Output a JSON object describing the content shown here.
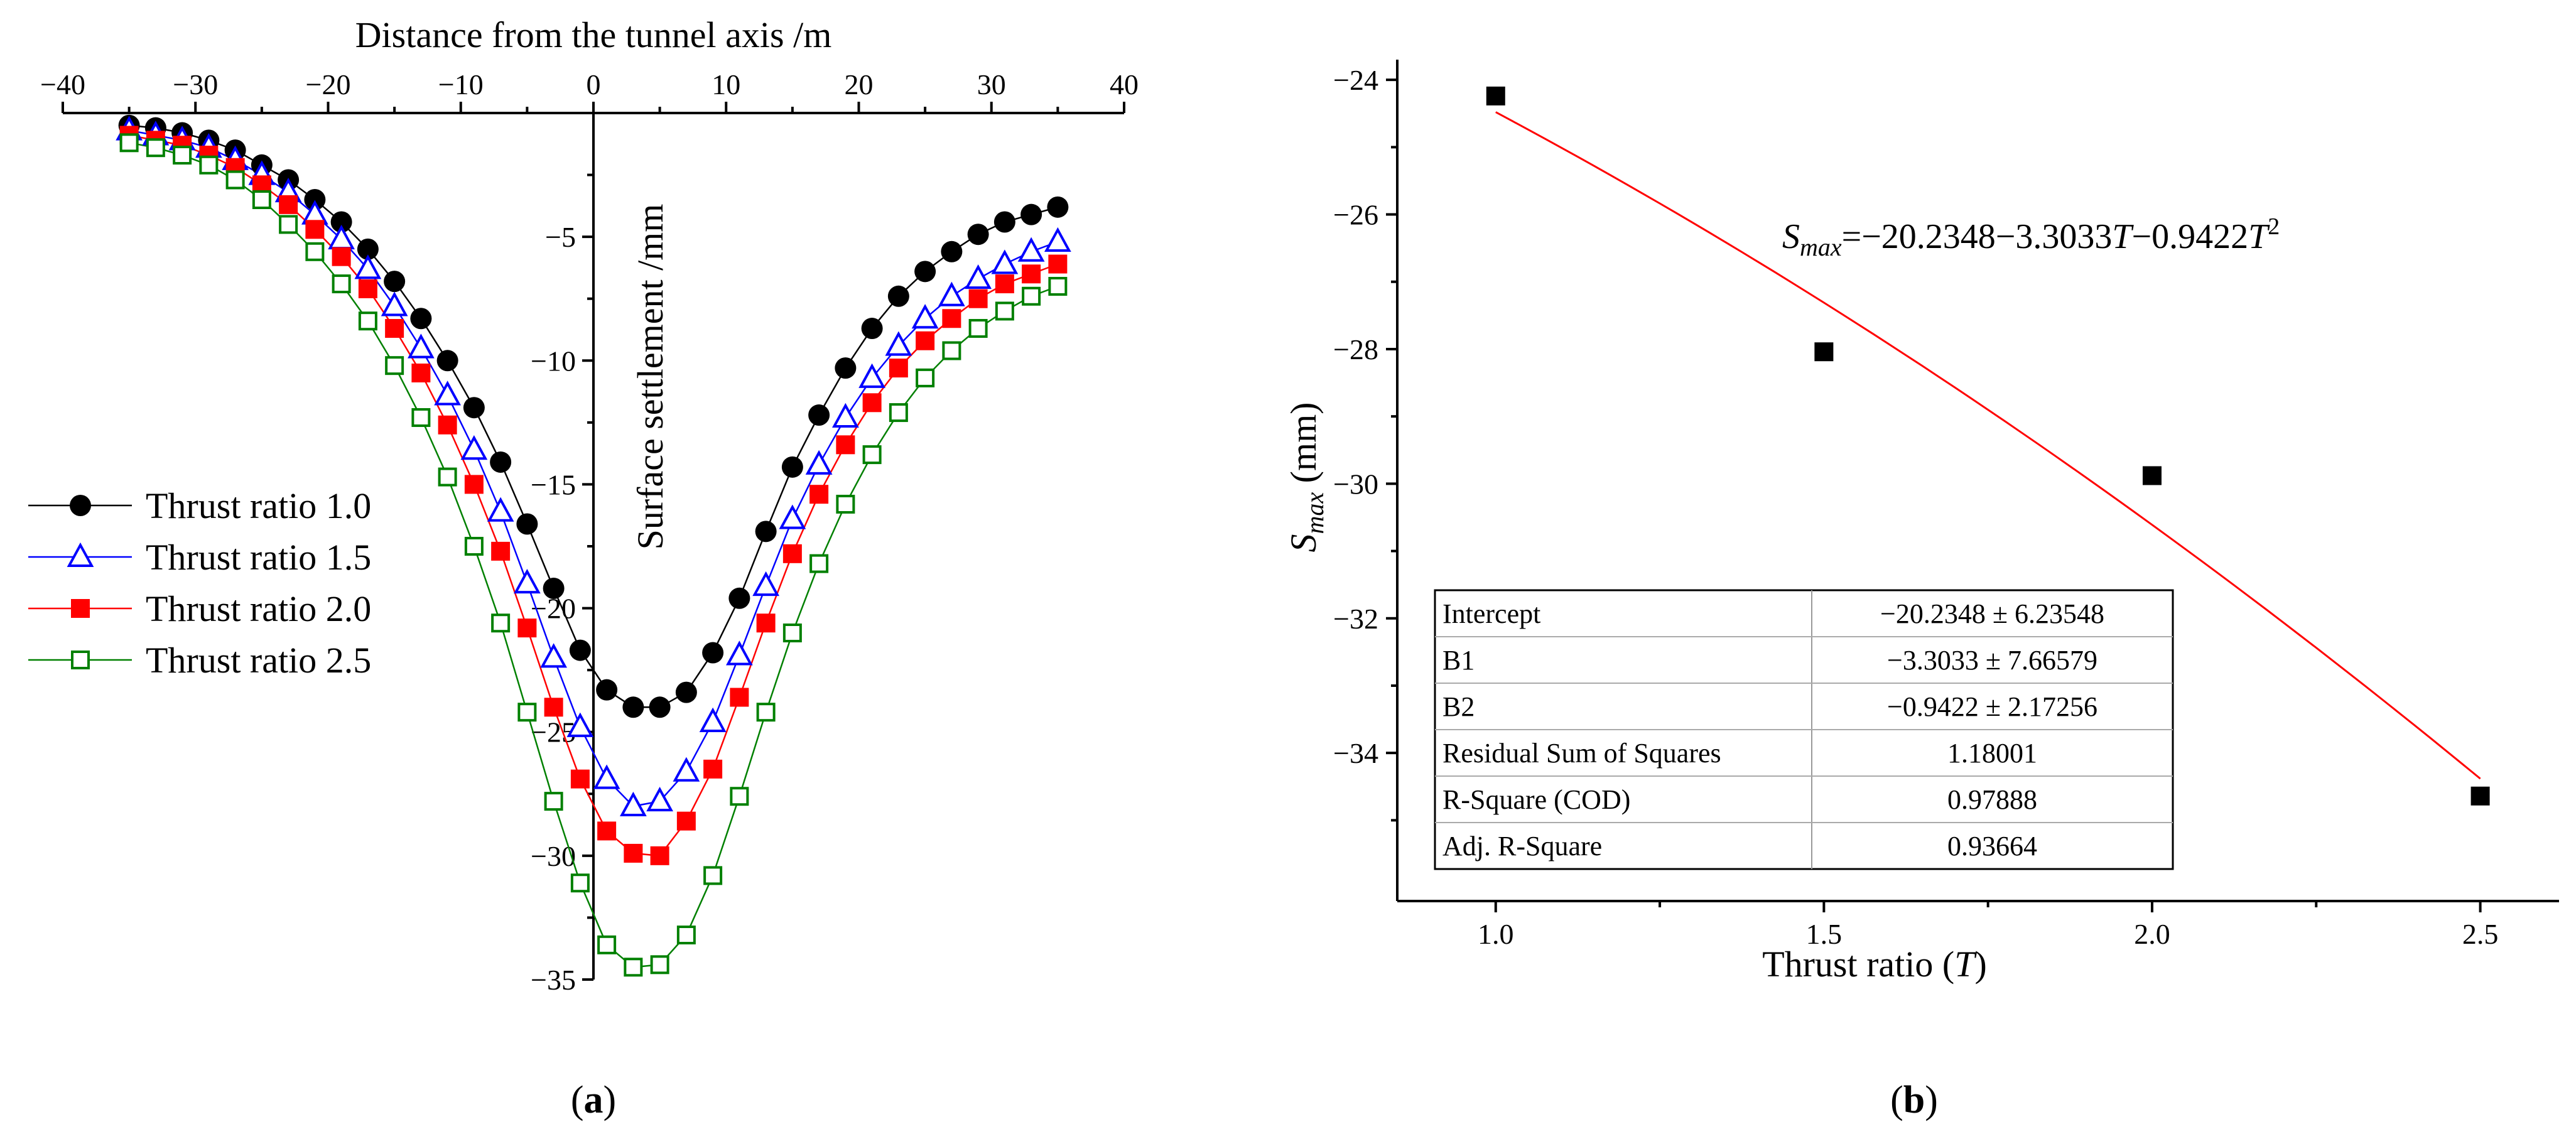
{
  "chart_data": [
    {
      "type": "line",
      "panel_label": "a",
      "title": "",
      "xlabel": "Distance from the tunnel axis /m",
      "ylabel": "Surface settlement /mm",
      "xlim": [
        -40,
        40
      ],
      "ylim": [
        -35,
        0
      ],
      "xticks": [
        -40,
        -30,
        -20,
        -10,
        0,
        10,
        20,
        30,
        40
      ],
      "yticks": [
        -5,
        -10,
        -15,
        -20,
        -25,
        -30,
        -35
      ],
      "x": [
        -35,
        -33,
        -31,
        -29,
        -27,
        -25,
        -23,
        -21,
        -19,
        -17,
        -15,
        -13,
        -11,
        -9,
        -7,
        -5,
        -3,
        -1,
        1,
        3,
        5,
        7,
        9,
        11,
        13,
        15,
        17,
        19,
        21,
        23,
        25,
        27,
        29,
        31,
        33,
        35
      ],
      "legend_position": "left",
      "series": [
        {
          "name": "Thrust ratio 1.0",
          "marker": "filled-circle",
          "color": "#000000",
          "values": [
            -0.5,
            -0.6,
            -0.8,
            -1.1,
            -1.5,
            -2.1,
            -2.7,
            -3.5,
            -4.4,
            -5.5,
            -6.8,
            -8.3,
            -10.0,
            -11.9,
            -14.1,
            -16.6,
            -19.2,
            -21.7,
            -23.3,
            -24.0,
            -24.0,
            -23.4,
            -21.8,
            -19.6,
            -16.9,
            -14.3,
            -12.2,
            -10.3,
            -8.7,
            -7.4,
            -6.4,
            -5.6,
            -4.9,
            -4.4,
            -4.1,
            -3.8
          ]
        },
        {
          "name": "Thrust ratio 1.5",
          "marker": "open-triangle",
          "color": "#0000ff",
          "values": [
            -0.7,
            -0.9,
            -1.1,
            -1.4,
            -1.9,
            -2.5,
            -3.2,
            -4.1,
            -5.1,
            -6.3,
            -7.8,
            -9.5,
            -11.4,
            -13.6,
            -16.1,
            -19.0,
            -22.0,
            -24.8,
            -26.9,
            -28.0,
            -27.8,
            -26.6,
            -24.6,
            -21.9,
            -19.1,
            -16.4,
            -14.2,
            -12.3,
            -10.7,
            -9.4,
            -8.3,
            -7.4,
            -6.7,
            -6.1,
            -5.6,
            -5.2
          ]
        },
        {
          "name": "Thrust ratio 2.0",
          "marker": "filled-square",
          "color": "#ff0000",
          "values": [
            -0.9,
            -1.1,
            -1.3,
            -1.7,
            -2.2,
            -2.9,
            -3.7,
            -4.7,
            -5.8,
            -7.1,
            -8.7,
            -10.5,
            -12.6,
            -15.0,
            -17.7,
            -20.8,
            -24.0,
            -26.9,
            -29.0,
            -29.9,
            -30.0,
            -28.6,
            -26.5,
            -23.6,
            -20.6,
            -17.8,
            -15.4,
            -13.4,
            -11.7,
            -10.3,
            -9.2,
            -8.3,
            -7.5,
            -6.9,
            -6.5,
            -6.1
          ]
        },
        {
          "name": "Thrust ratio 2.5",
          "marker": "open-square",
          "color": "#008000",
          "values": [
            -1.2,
            -1.4,
            -1.7,
            -2.1,
            -2.7,
            -3.5,
            -4.5,
            -5.6,
            -6.9,
            -8.4,
            -10.2,
            -12.3,
            -14.7,
            -17.5,
            -20.6,
            -24.2,
            -27.8,
            -31.1,
            -33.6,
            -34.5,
            -34.4,
            -33.2,
            -30.8,
            -27.6,
            -24.2,
            -21.0,
            -18.2,
            -15.8,
            -13.8,
            -12.1,
            -10.7,
            -9.6,
            -8.7,
            -8.0,
            -7.4,
            -7.0
          ]
        }
      ]
    },
    {
      "type": "scatter",
      "panel_label": "b",
      "title": "",
      "xlabel_main": "Thrust ratio (",
      "xlabel_var": "T",
      "xlabel_end": ")",
      "ylabel_s": "S",
      "ylabel_sub": "max",
      "ylabel_unit": " (mm)",
      "xlim": [
        0.85,
        2.62
      ],
      "ylim": [
        -36.2,
        -23.7
      ],
      "xticks": [
        "1.0",
        "1.5",
        "2.0",
        "2.5"
      ],
      "yticks": [
        "-24",
        "-26",
        "-28",
        "-30",
        "-32",
        "-34"
      ],
      "points": {
        "x": [
          1.0,
          1.5,
          2.0,
          2.5
        ],
        "y": [
          -24.24,
          -28.04,
          -29.88,
          -34.64
        ]
      },
      "fit": {
        "intercept": -20.2348,
        "b1": -3.3033,
        "b2": -0.9422,
        "x_range": [
          1.0,
          2.5
        ],
        "color": "#ff0000"
      },
      "equation": {
        "s": "S",
        "sub": "max",
        "body": "=−20.2348−3.3033",
        "t1": "T",
        "mid": "−0.9422",
        "t2": "T",
        "sup": "2"
      },
      "stats_table": [
        [
          "Intercept",
          "−20.2348 ± 6.23548"
        ],
        [
          "B1",
          "−3.3033 ± 7.66579"
        ],
        [
          "B2",
          "−0.9422 ± 2.17256"
        ],
        [
          "Residual Sum of Squares",
          "1.18001"
        ],
        [
          "R-Square (COD)",
          "0.97888"
        ],
        [
          "Adj. R-Square",
          "0.93664"
        ]
      ]
    }
  ],
  "captions": {
    "a": "a",
    "b": "b"
  }
}
